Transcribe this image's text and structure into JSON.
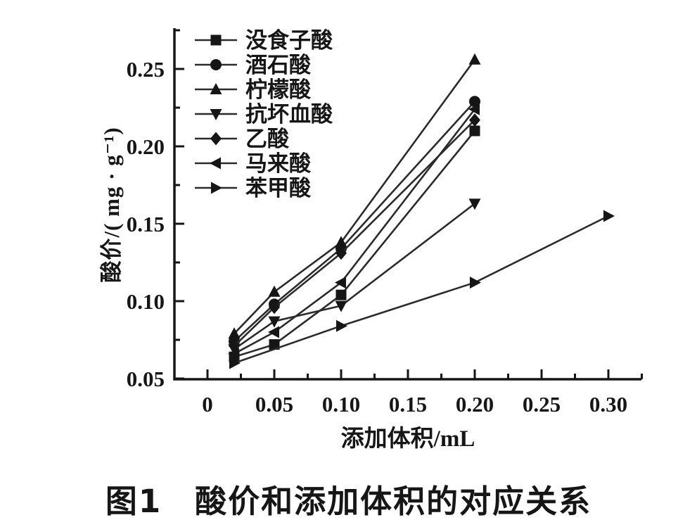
{
  "figure": {
    "caption": "图1　酸价和添加体积的对应关系",
    "x_axis_label": "添加体积/mL",
    "y_axis_label": "酸价/( mg · g⁻¹)"
  },
  "chart_data": {
    "type": "line",
    "title": "",
    "xlabel": "添加体积/mL",
    "ylabel": "酸价/(mg·g⁻¹)",
    "xlim": [
      -0.025,
      0.335
    ],
    "ylim": [
      0.05,
      0.28
    ],
    "grid": false,
    "legend_position": "top-left-inside",
    "ink_color": "#161616",
    "x_ticks": [
      0,
      0.05,
      0.1,
      0.15,
      0.2,
      0.25,
      0.3
    ],
    "x_tick_labels": [
      "0",
      "0.05",
      "0.10",
      "0.15",
      "0.20",
      "0.25",
      "0.30"
    ],
    "x_minor_ticks": [
      0.025,
      0.075,
      0.125,
      0.175,
      0.225,
      0.275,
      0.325
    ],
    "y_ticks": [
      0.05,
      0.1,
      0.15,
      0.2,
      0.25
    ],
    "y_tick_labels": [
      "0.05",
      "0.10",
      "0.15",
      "0.20",
      "0.25"
    ],
    "y_minor_ticks": [
      0.075,
      0.125,
      0.175,
      0.225,
      0.275
    ],
    "series": [
      {
        "key": "gallic-acid",
        "name": "没食子酸",
        "marker": "square",
        "x": [
          0.02,
          0.05,
          0.1,
          0.2
        ],
        "y": [
          0.064,
          0.072,
          0.104,
          0.21
        ]
      },
      {
        "key": "tartaric-acid",
        "name": "酒石酸",
        "marker": "circle",
        "x": [
          0.02,
          0.05,
          0.1,
          0.2
        ],
        "y": [
          0.074,
          0.098,
          0.134,
          0.229
        ]
      },
      {
        "key": "citric-acid",
        "name": "柠檬酸",
        "marker": "triangle-up",
        "x": [
          0.02,
          0.05,
          0.1,
          0.2
        ],
        "y": [
          0.079,
          0.106,
          0.138,
          0.256
        ]
      },
      {
        "key": "ascorbic-acid",
        "name": "抗坏血酸",
        "marker": "triangle-down",
        "x": [
          0.02,
          0.05,
          0.1,
          0.2
        ],
        "y": [
          0.069,
          0.087,
          0.097,
          0.163
        ]
      },
      {
        "key": "acetic-acid",
        "name": "乙酸",
        "marker": "diamond",
        "x": [
          0.02,
          0.05,
          0.1,
          0.2
        ],
        "y": [
          0.071,
          0.096,
          0.131,
          0.217
        ]
      },
      {
        "key": "maleic-acid",
        "name": "马来酸",
        "marker": "triangle-left",
        "x": [
          0.02,
          0.05,
          0.1,
          0.2
        ],
        "y": [
          0.066,
          0.08,
          0.112,
          0.224
        ]
      },
      {
        "key": "benzoic-acid",
        "name": "苯甲酸",
        "marker": "triangle-right",
        "x": [
          0.02,
          0.1,
          0.2,
          0.3
        ],
        "y": [
          0.06,
          0.084,
          0.112,
          0.155
        ]
      }
    ]
  }
}
